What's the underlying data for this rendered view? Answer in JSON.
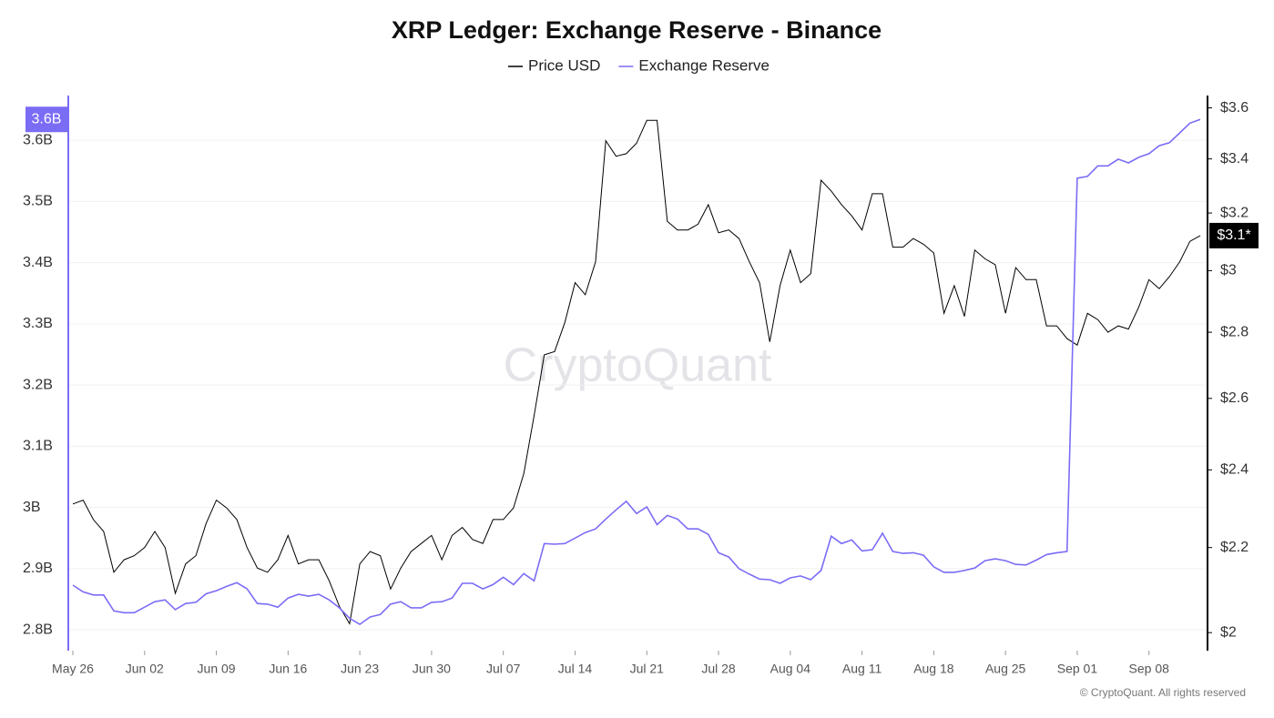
{
  "chart_data": {
    "type": "line",
    "title": "XRP Ledger: Exchange Reserve - Binance",
    "watermark": "CryptoQuant",
    "credit": "© CryptoQuant. All rights reserved",
    "categories": [
      "May 26",
      null,
      null,
      null,
      null,
      null,
      null,
      "Jun 02",
      null,
      null,
      null,
      null,
      null,
      null,
      "Jun 09",
      null,
      null,
      null,
      null,
      null,
      null,
      "Jun 16",
      null,
      null,
      null,
      null,
      null,
      null,
      "Jun 23",
      null,
      null,
      null,
      null,
      null,
      null,
      "Jun 30",
      null,
      null,
      null,
      null,
      null,
      null,
      "Jul 07",
      null,
      null,
      null,
      null,
      null,
      null,
      "Jul 14",
      null,
      null,
      null,
      null,
      null,
      null,
      "Jul 21",
      null,
      null,
      null,
      null,
      null,
      null,
      "Jul 28",
      null,
      null,
      null,
      null,
      null,
      null,
      "Aug 04",
      null,
      null,
      null,
      null,
      null,
      null,
      "Aug 11",
      null,
      null,
      null,
      null,
      null,
      null,
      "Aug 18",
      null,
      null,
      null,
      null,
      null,
      null,
      "Aug 25",
      null,
      null,
      null,
      null,
      null,
      null,
      "Sep 01",
      null,
      null,
      null,
      null,
      null,
      null,
      "Sep 08",
      null,
      null,
      null,
      null,
      null
    ],
    "series": [
      {
        "name": "Price USD",
        "color": "#000000",
        "axis": "y2",
        "last_label": "$3.1*",
        "values": [
          2.31,
          2.32,
          2.27,
          2.24,
          2.14,
          2.17,
          2.18,
          2.2,
          2.24,
          2.2,
          2.09,
          2.16,
          2.18,
          2.26,
          2.32,
          2.3,
          2.27,
          2.2,
          2.15,
          2.14,
          2.17,
          2.23,
          2.16,
          2.17,
          2.17,
          2.12,
          2.06,
          2.02,
          2.16,
          2.19,
          2.18,
          2.1,
          2.15,
          2.19,
          2.21,
          2.23,
          2.17,
          2.23,
          2.25,
          2.22,
          2.21,
          2.27,
          2.27,
          2.3,
          2.39,
          2.55,
          2.73,
          2.74,
          2.83,
          2.96,
          2.92,
          3.03,
          3.47,
          3.41,
          3.42,
          3.46,
          3.55,
          3.55,
          3.17,
          3.14,
          3.14,
          3.16,
          3.23,
          3.13,
          3.14,
          3.11,
          3.03,
          2.96,
          2.77,
          2.95,
          3.07,
          2.96,
          2.99,
          3.32,
          3.28,
          3.23,
          3.19,
          3.14,
          3.27,
          3.27,
          3.08,
          3.08,
          3.11,
          3.09,
          3.06,
          2.86,
          2.95,
          2.85,
          3.07,
          3.04,
          3.02,
          2.86,
          3.01,
          2.97,
          2.97,
          2.82,
          2.82,
          2.78,
          2.76,
          2.86,
          2.84,
          2.8,
          2.82,
          2.81,
          2.88,
          2.97,
          2.94,
          2.98,
          3.03,
          3.1,
          3.12
        ]
      },
      {
        "name": "Exchange Reserve",
        "color": "#7b6cf6",
        "axis": "y",
        "last_label": "3.6B",
        "values": [
          2.873,
          2.862,
          2.857,
          2.857,
          2.831,
          2.828,
          2.828,
          2.837,
          2.846,
          2.849,
          2.833,
          2.843,
          2.845,
          2.859,
          2.864,
          2.871,
          2.877,
          2.867,
          2.843,
          2.842,
          2.837,
          2.852,
          2.858,
          2.855,
          2.858,
          2.849,
          2.836,
          2.819,
          2.809,
          2.821,
          2.825,
          2.842,
          2.846,
          2.836,
          2.836,
          2.845,
          2.846,
          2.852,
          2.876,
          2.876,
          2.867,
          2.874,
          2.886,
          2.874,
          2.892,
          2.88,
          2.941,
          2.94,
          2.941,
          2.95,
          2.959,
          2.965,
          2.981,
          2.996,
          3.01,
          2.99,
          3.001,
          2.972,
          2.987,
          2.981,
          2.965,
          2.965,
          2.956,
          2.926,
          2.919,
          2.9,
          2.891,
          2.883,
          2.882,
          2.876,
          2.885,
          2.888,
          2.882,
          2.897,
          2.953,
          2.941,
          2.947,
          2.929,
          2.931,
          2.958,
          2.928,
          2.925,
          2.926,
          2.922,
          2.903,
          2.894,
          2.894,
          2.897,
          2.901,
          2.913,
          2.916,
          2.913,
          2.907,
          2.906,
          2.914,
          2.923,
          2.926,
          2.928,
          3.538,
          3.541,
          3.558,
          3.558,
          3.569,
          3.563,
          3.572,
          3.578,
          3.591,
          3.596,
          3.612,
          3.628,
          3.634
        ]
      }
    ],
    "ylim": [
      2.766,
      3.673
    ],
    "yticks": [
      {
        "value": 2.8,
        "label": "2.8B"
      },
      {
        "value": 2.9,
        "label": "2.9B"
      },
      {
        "value": 3,
        "label": "3B"
      },
      {
        "value": 3.1,
        "label": "3.1B"
      },
      {
        "value": 3.2,
        "label": "3.2B"
      },
      {
        "value": 3.3,
        "label": "3.3B"
      },
      {
        "value": 3.4,
        "label": "3.4B"
      },
      {
        "value": 3.5,
        "label": "3.5B"
      },
      {
        "value": 3.6,
        "label": "3.6B"
      }
    ],
    "y2lim": [
      1.96,
      3.65
    ],
    "y2ticks": [
      {
        "value": 2,
        "label": "$2"
      },
      {
        "value": 2.2,
        "label": "$2.2"
      },
      {
        "value": 2.4,
        "label": "$2.4"
      },
      {
        "value": 2.6,
        "label": "$2.6"
      },
      {
        "value": 2.8,
        "label": "$2.8"
      },
      {
        "value": 3,
        "label": "$3"
      },
      {
        "value": 3.2,
        "label": "$3.2"
      },
      {
        "value": 3.4,
        "label": "$3.4"
      },
      {
        "value": 3.6,
        "label": "$3.6"
      }
    ],
    "y2_log": true,
    "grid": true,
    "legend": "top"
  }
}
